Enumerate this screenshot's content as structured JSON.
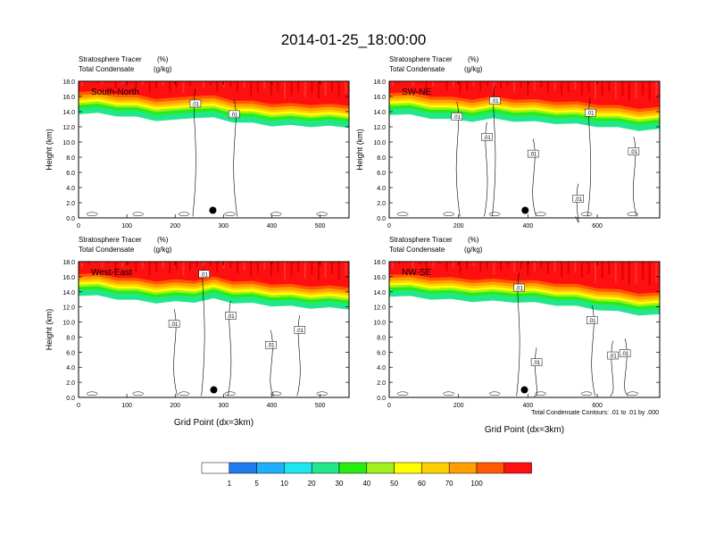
{
  "main_title": "2014-01-25_18:00:00",
  "panel_labels": {
    "tracer": "Stratosphere Tracer",
    "tracer_unit": "(%)",
    "condensate": "Total Condensate",
    "condensate_unit": "(g/kg)"
  },
  "contour_note": "Total Condensate Contours: .01 to .01 by .000",
  "colors": {
    "background": "#ffffff",
    "panel_frame": "#000000",
    "contour_line": "#000000",
    "marker": "#000000",
    "section_label": "#ffffff",
    "stratosphere_band": "#e81010"
  },
  "chart_data": [
    {
      "type": "heatmap",
      "name": "South-North",
      "xlabel": "",
      "ylabel": "Height (km)",
      "xlim": [
        0,
        560
      ],
      "ylim": [
        0,
        18
      ],
      "x_ticks": [
        0,
        100,
        200,
        300,
        400,
        500
      ],
      "x_tick_labels": [
        "0",
        "100",
        "200",
        "300",
        "400",
        "500"
      ],
      "y_ticks": [
        0,
        2,
        4,
        6,
        8,
        10,
        12,
        14,
        16,
        18
      ],
      "y_tick_labels": [
        "0.0",
        "2.0",
        "4.0",
        "6.0",
        "8.0",
        "10.0",
        "12.0",
        "14.0",
        "16.0",
        "18.0"
      ],
      "marker": {
        "x": 278,
        "y": 1.0
      },
      "contour_labels": [
        {
          "text": ".01",
          "x": 242,
          "y": 15.0
        },
        {
          "text": ".01",
          "x": 322,
          "y": 13.6
        }
      ],
      "tropopause_profile": {
        "x": [
          0,
          40,
          80,
          120,
          160,
          200,
          240,
          280,
          320,
          360,
          400,
          440,
          480,
          520,
          560
        ],
        "y": [
          16.0,
          15.9,
          15.7,
          15.4,
          15.1,
          15.0,
          15.5,
          15.3,
          14.9,
          14.6,
          14.4,
          14.3,
          14.3,
          14.2,
          14.2
        ]
      }
    },
    {
      "type": "heatmap",
      "name": "SW-NE",
      "xlabel": "",
      "ylabel": "Height (km)",
      "xlim": [
        0,
        780
      ],
      "ylim": [
        0,
        18
      ],
      "x_ticks": [
        0,
        200,
        400,
        600
      ],
      "x_tick_labels": [
        "0",
        "200",
        "400",
        "600"
      ],
      "y_ticks": [
        0,
        2,
        4,
        6,
        8,
        10,
        12,
        14,
        16,
        18
      ],
      "y_tick_labels": [
        "0.0",
        "2.0",
        "4.0",
        "6.0",
        "8.0",
        "10.0",
        "12.0",
        "14.0",
        "16.0",
        "18.0"
      ],
      "marker": {
        "x": 392,
        "y": 1.0
      },
      "contour_labels": [
        {
          "text": ".01",
          "x": 305,
          "y": 15.4
        },
        {
          "text": ".01",
          "x": 195,
          "y": 13.3
        },
        {
          "text": ".01",
          "x": 282,
          "y": 10.6
        },
        {
          "text": ".01",
          "x": 415,
          "y": 8.4
        },
        {
          "text": ".01",
          "x": 580,
          "y": 13.8
        },
        {
          "text": ".01",
          "x": 705,
          "y": 8.7
        },
        {
          "text": ".01",
          "x": 545,
          "y": 2.5
        }
      ],
      "tropopause_profile": {
        "x": [
          0,
          60,
          120,
          180,
          240,
          300,
          360,
          420,
          480,
          540,
          600,
          660,
          720,
          780
        ],
        "y": [
          15.9,
          15.7,
          15.4,
          15.1,
          15.0,
          15.2,
          15.0,
          14.8,
          14.7,
          14.5,
          14.3,
          14.0,
          13.8,
          13.8
        ]
      }
    },
    {
      "type": "heatmap",
      "name": "West-East",
      "xlabel": "Grid Point (dx=3km)",
      "ylabel": "Height (km)",
      "xlim": [
        0,
        560
      ],
      "ylim": [
        0,
        18
      ],
      "x_ticks": [
        0,
        100,
        200,
        300,
        400,
        500
      ],
      "x_tick_labels": [
        "0",
        "100",
        "200",
        "300",
        "400",
        "500"
      ],
      "y_ticks": [
        0,
        2,
        4,
        6,
        8,
        10,
        12,
        14,
        16,
        18
      ],
      "y_tick_labels": [
        "0.0",
        "2.0",
        "4.0",
        "6.0",
        "8.0",
        "10.0",
        "12.0",
        "14.0",
        "16.0",
        "18.0"
      ],
      "marker": {
        "x": 280,
        "y": 1.0
      },
      "contour_labels": [
        {
          "text": ".01",
          "x": 260,
          "y": 16.3
        },
        {
          "text": ".01",
          "x": 198,
          "y": 9.7
        },
        {
          "text": ".01",
          "x": 315,
          "y": 10.8
        },
        {
          "text": ".01",
          "x": 398,
          "y": 6.9
        },
        {
          "text": ".01",
          "x": 458,
          "y": 8.9
        }
      ],
      "tropopause_profile": {
        "x": [
          0,
          40,
          80,
          120,
          160,
          200,
          240,
          280,
          320,
          360,
          400,
          440,
          480,
          520,
          560
        ],
        "y": [
          15.8,
          15.6,
          15.3,
          15.0,
          14.8,
          14.8,
          14.9,
          15.2,
          14.8,
          14.6,
          14.4,
          14.2,
          14.1,
          14.0,
          14.0
        ]
      }
    },
    {
      "type": "heatmap",
      "name": "NW-SE",
      "xlabel": "Grid Point (dx=3km)",
      "ylabel": "",
      "xlim": [
        0,
        780
      ],
      "ylim": [
        0,
        18
      ],
      "x_ticks": [
        0,
        200,
        400,
        600
      ],
      "x_tick_labels": [
        "0",
        "200",
        "400",
        "600"
      ],
      "y_ticks": [
        0,
        2,
        4,
        6,
        8,
        10,
        12,
        14,
        16,
        18
      ],
      "y_tick_labels": [
        "0.0",
        "2.0",
        "4.0",
        "6.0",
        "8.0",
        "10.0",
        "12.0",
        "14.0",
        "16.0",
        "18.0"
      ],
      "marker": {
        "x": 390,
        "y": 1.0
      },
      "contour_labels": [
        {
          "text": ".01",
          "x": 375,
          "y": 14.5
        },
        {
          "text": ".01",
          "x": 585,
          "y": 10.2
        },
        {
          "text": ".01",
          "x": 645,
          "y": 5.5
        },
        {
          "text": ".01",
          "x": 680,
          "y": 5.8
        },
        {
          "text": ".01",
          "x": 425,
          "y": 4.6
        }
      ],
      "tropopause_profile": {
        "x": [
          0,
          60,
          120,
          180,
          240,
          300,
          360,
          420,
          480,
          540,
          600,
          660,
          720,
          780
        ],
        "y": [
          15.7,
          15.5,
          15.3,
          15.1,
          15.0,
          14.9,
          14.9,
          14.7,
          14.5,
          14.2,
          13.9,
          13.5,
          13.2,
          13.1
        ]
      }
    }
  ],
  "colorbar": {
    "labels": [
      "1",
      "5",
      "10",
      "20",
      "30",
      "40",
      "50",
      "60",
      "70",
      "100"
    ],
    "colors": [
      "#ffffff",
      "#1e7cf0",
      "#1eb0ff",
      "#1ee6f0",
      "#22e68c",
      "#28ee10",
      "#a0f020",
      "#ffff00",
      "#ffd000",
      "#ffa000",
      "#ff5a00",
      "#ff1010"
    ]
  }
}
